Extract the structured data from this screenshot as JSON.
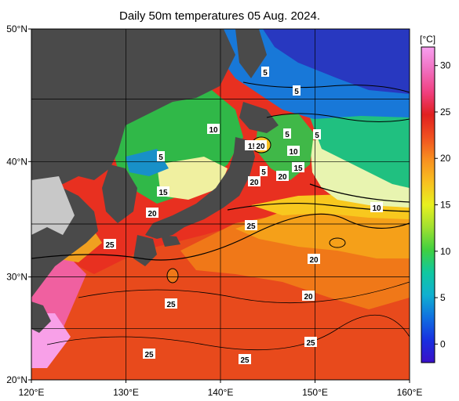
{
  "title": "Daily 50m temperatures 05 Aug. 2024.",
  "map": {
    "lat_range": [
      20,
      50
    ],
    "lon_range": [
      120,
      160
    ],
    "lat_ticks": [
      "20°N",
      "30°N",
      "40°N",
      "50°N"
    ],
    "lon_ticks": [
      "120°E",
      "130°E",
      "140°E",
      "150°E",
      "160°E"
    ],
    "land_color": "#4a4a4a",
    "land_mask_color": "#c8c8c8",
    "contour_labels": [
      "5",
      "5",
      "5",
      "5",
      "10",
      "5",
      "10",
      "1!20",
      "20",
      "5",
      "20",
      "15",
      "15",
      "10",
      "20",
      "20",
      "25",
      "25",
      "20",
      "25",
      "20",
      "25",
      "25",
      "25"
    ]
  },
  "colorbar": {
    "unit": "[°C]",
    "ticks": [
      "0",
      "5",
      "10",
      "15",
      "20",
      "25",
      "30"
    ],
    "tick_values": [
      0,
      5,
      10,
      15,
      20,
      25,
      30
    ],
    "range": [
      -2,
      32
    ],
    "colors": [
      "#3a10c8",
      "#1830e0",
      "#1070e0",
      "#10b0d0",
      "#10c8a0",
      "#40d040",
      "#a0e030",
      "#e8f020",
      "#f8c020",
      "#f89020",
      "#f05020",
      "#e02020",
      "#f04080",
      "#f070c0",
      "#f8a0f0"
    ]
  }
}
